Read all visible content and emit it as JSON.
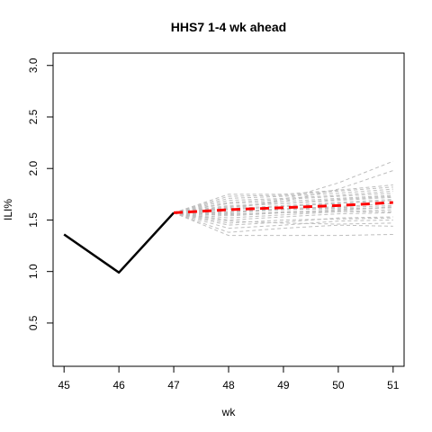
{
  "chart_data": {
    "type": "line",
    "title": "HHS7 1-4 wk ahead",
    "xlabel": "wk",
    "ylabel": "ILI%",
    "xlim": [
      44.8,
      51.2
    ],
    "ylim": [
      0.08,
      3.12
    ],
    "x_ticks": [
      45,
      46,
      47,
      48,
      49,
      50,
      51
    ],
    "y_ticks": [
      0.5,
      1.0,
      1.5,
      2.0,
      2.5,
      3.0
    ],
    "y_tick_labels": [
      "0.5",
      "1.0",
      "1.5",
      "2.0",
      "2.5",
      "3.0"
    ],
    "grid": false,
    "observed": {
      "x": [
        45,
        46,
        47
      ],
      "y": [
        1.36,
        0.99,
        1.57
      ],
      "color": "#000000"
    },
    "forecast_mean": {
      "x": [
        47,
        48,
        49,
        50,
        51
      ],
      "y": [
        1.57,
        1.6,
        1.62,
        1.64,
        1.67
      ],
      "color": "#ff0000"
    },
    "ensemble_color": "#bebebe",
    "ensemble": [
      {
        "x": [
          47,
          48,
          49,
          50,
          51
        ],
        "y": [
          1.57,
          1.35,
          1.35,
          1.35,
          1.36
        ]
      },
      {
        "x": [
          47,
          48,
          49,
          50,
          51
        ],
        "y": [
          1.57,
          1.38,
          1.42,
          1.45,
          1.44
        ]
      },
      {
        "x": [
          47,
          48,
          49,
          50,
          51
        ],
        "y": [
          1.57,
          1.42,
          1.45,
          1.49,
          1.5
        ]
      },
      {
        "x": [
          47,
          48,
          49,
          50,
          51
        ],
        "y": [
          1.57,
          1.45,
          1.48,
          1.52,
          1.53
        ]
      },
      {
        "x": [
          47,
          48,
          49,
          50,
          51
        ],
        "y": [
          1.57,
          1.47,
          1.5,
          1.51,
          1.52
        ]
      },
      {
        "x": [
          47,
          48,
          49,
          50,
          51
        ],
        "y": [
          1.57,
          1.5,
          1.53,
          1.56,
          1.57
        ]
      },
      {
        "x": [
          47,
          48,
          49,
          50,
          51
        ],
        "y": [
          1.57,
          1.52,
          1.55,
          1.58,
          1.6
        ]
      },
      {
        "x": [
          47,
          48,
          49,
          50,
          51
        ],
        "y": [
          1.57,
          1.54,
          1.57,
          1.6,
          1.62
        ]
      },
      {
        "x": [
          47,
          48,
          49,
          50,
          51
        ],
        "y": [
          1.57,
          1.55,
          1.58,
          1.59,
          1.63
        ]
      },
      {
        "x": [
          47,
          48,
          49,
          50,
          51
        ],
        "y": [
          1.57,
          1.57,
          1.6,
          1.62,
          1.64
        ]
      },
      {
        "x": [
          47,
          48,
          49,
          50,
          51
        ],
        "y": [
          1.57,
          1.58,
          1.61,
          1.63,
          1.66
        ]
      },
      {
        "x": [
          47,
          48,
          49,
          50,
          51
        ],
        "y": [
          1.57,
          1.6,
          1.63,
          1.66,
          1.69
        ]
      },
      {
        "x": [
          47,
          48,
          49,
          50,
          51
        ],
        "y": [
          1.57,
          1.61,
          1.64,
          1.67,
          1.7
        ]
      },
      {
        "x": [
          47,
          48,
          49,
          50,
          51
        ],
        "y": [
          1.57,
          1.63,
          1.66,
          1.69,
          1.72
        ]
      },
      {
        "x": [
          47,
          48,
          49,
          50,
          51
        ],
        "y": [
          1.57,
          1.64,
          1.66,
          1.7,
          1.73
        ]
      },
      {
        "x": [
          47,
          48,
          49,
          50,
          51
        ],
        "y": [
          1.57,
          1.66,
          1.68,
          1.71,
          1.74
        ]
      },
      {
        "x": [
          47,
          48,
          49,
          50,
          51
        ],
        "y": [
          1.57,
          1.67,
          1.7,
          1.73,
          1.76
        ]
      },
      {
        "x": [
          47,
          48,
          49,
          50,
          51
        ],
        "y": [
          1.57,
          1.69,
          1.71,
          1.74,
          1.78
        ]
      },
      {
        "x": [
          47,
          48,
          49,
          50,
          51
        ],
        "y": [
          1.57,
          1.71,
          1.73,
          1.76,
          1.8
        ]
      },
      {
        "x": [
          47,
          48,
          49,
          50,
          51
        ],
        "y": [
          1.57,
          1.73,
          1.74,
          1.78,
          1.82
        ]
      },
      {
        "x": [
          47,
          48,
          49,
          50,
          51
        ],
        "y": [
          1.57,
          1.75,
          1.75,
          1.79,
          1.84
        ]
      },
      {
        "x": [
          47,
          48,
          49,
          50,
          51
        ],
        "y": [
          1.57,
          1.62,
          1.68,
          1.8,
          1.98
        ]
      },
      {
        "x": [
          47,
          48,
          49,
          50,
          51
        ],
        "y": [
          1.57,
          1.6,
          1.7,
          1.86,
          2.07
        ]
      },
      {
        "x": [
          47,
          48,
          49,
          50,
          51
        ],
        "y": [
          1.57,
          1.58,
          1.6,
          1.61,
          1.62
        ]
      },
      {
        "x": [
          47,
          48,
          49,
          50,
          51
        ],
        "y": [
          1.57,
          1.56,
          1.57,
          1.58,
          1.58
        ]
      },
      {
        "x": [
          47,
          48,
          49,
          50,
          51
        ],
        "y": [
          1.57,
          1.49,
          1.47,
          1.46,
          1.47
        ]
      }
    ]
  }
}
